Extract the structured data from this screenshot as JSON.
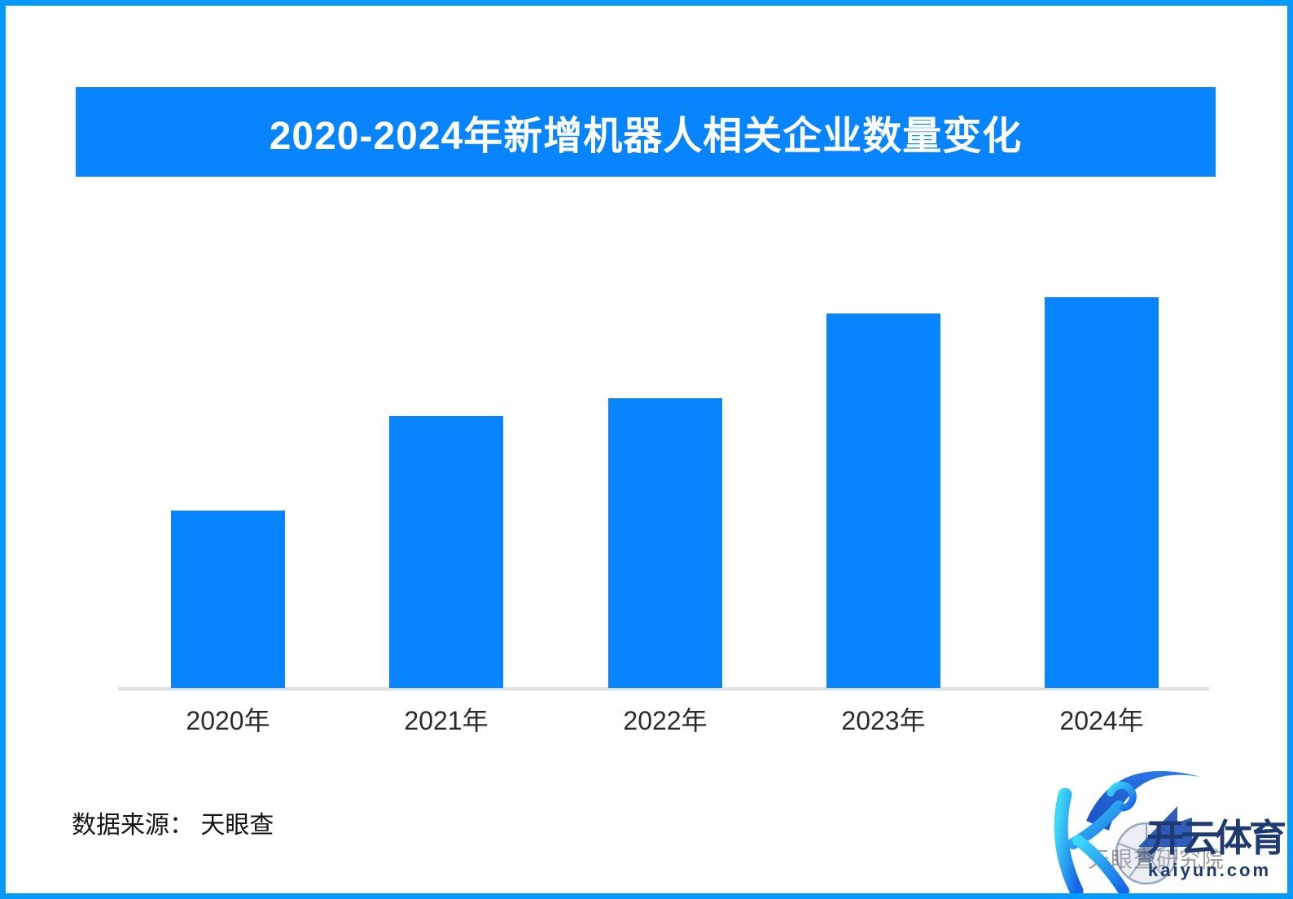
{
  "page": {
    "background_color": "#ffffff",
    "border_color": "#059afb"
  },
  "header": {
    "title": "2020-2024年新增机器人相关企业数量变化",
    "background_color": "#0885fe",
    "text_color": "#ffffff"
  },
  "chart_data": {
    "type": "bar",
    "title": "2020-2024年新增机器人相关企业数量变化",
    "categories": [
      "2020年",
      "2021年",
      "2022年",
      "2023年",
      "2024年"
    ],
    "values_relative_height": [
      0.454,
      0.696,
      0.742,
      0.958,
      1.0
    ],
    "value_labels_shown": false,
    "y_axis_shown": false,
    "xlabel": "",
    "ylabel": "",
    "grid": false,
    "legend": false,
    "bar_color": "#0885fe",
    "axis_line_color": "#dfdfdf",
    "label_color": "#2b2b2b"
  },
  "source": {
    "label": "数据来源： 天眼查"
  },
  "watermark": {
    "background_text": "天眼查研究院",
    "brand_text": "开云体育",
    "brand_url": "kaiyun.com",
    "brand_color": "#1e3a6e",
    "background_text_color": "#8b8b8b",
    "logo_gradient_start": "#3fd8f7",
    "logo_gradient_end": "#1565e6",
    "wave_color_start": "#1a4fc0",
    "wave_color_end": "#2f7ff0"
  }
}
